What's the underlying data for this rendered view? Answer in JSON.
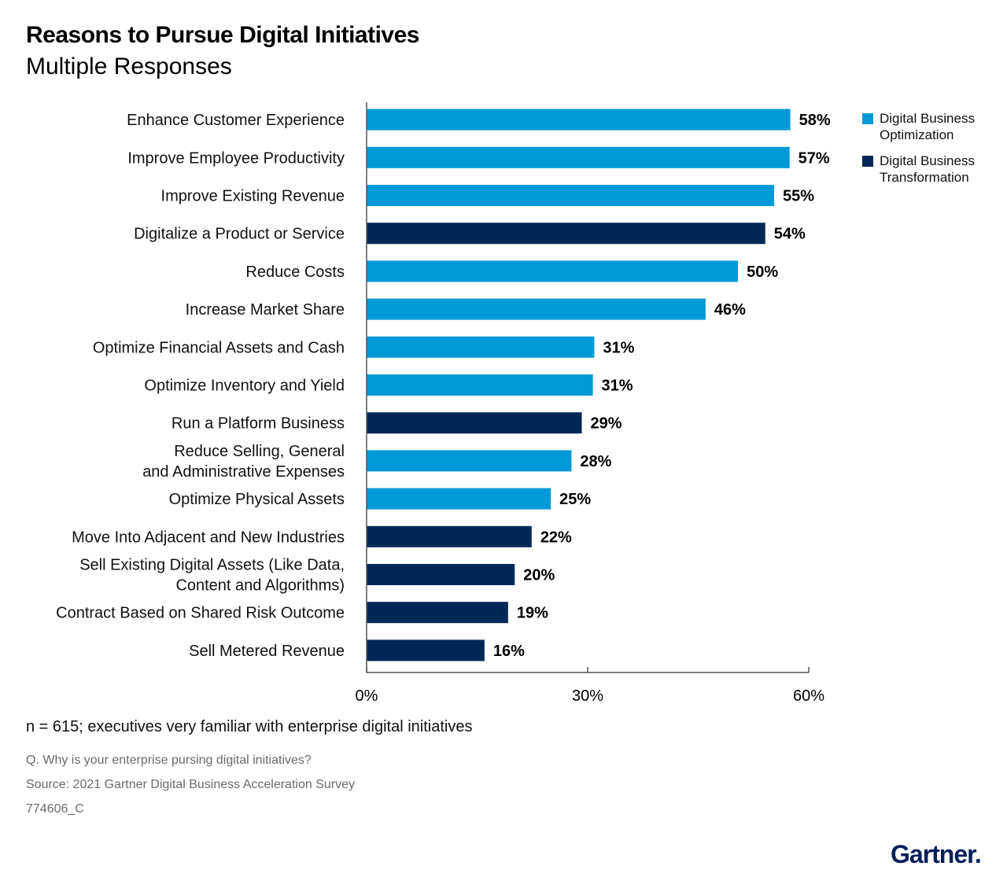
{
  "title": "Reasons to Pursue Digital Initiatives",
  "subtitle": "Multiple Responses",
  "legend": [
    {
      "label_line1": "Digital Business",
      "label_line2": "Optimization",
      "color": "#0099d8"
    },
    {
      "label_line1": "Digital Business",
      "label_line2": "Transformation",
      "color": "#002856"
    }
  ],
  "footer": {
    "note": "n = 615; executives very familiar with enterprise digital initiatives",
    "question": "Q. Why is your enterprise pursing digital initiatives?",
    "source": "Source: 2021 Gartner Digital Business Acceleration Survey",
    "doc_id": "774606_C"
  },
  "logo": "Gartner.",
  "chart_data": {
    "type": "bar",
    "orientation": "horizontal",
    "xlim": [
      0,
      60
    ],
    "xticks": [
      "0%",
      "30%",
      "60%"
    ],
    "xtick_values": [
      0,
      30,
      60
    ],
    "grid": false,
    "legend_position": "top-right",
    "categories": [
      [
        "Enhance Customer Experience"
      ],
      [
        "Improve Employee Productivity"
      ],
      [
        "Improve Existing Revenue"
      ],
      [
        "Digitalize a Product or Service"
      ],
      [
        "Reduce Costs"
      ],
      [
        "Increase Market Share"
      ],
      [
        "Optimize Financial Assets and Cash"
      ],
      [
        "Optimize Inventory and Yield"
      ],
      [
        "Run a Platform Business"
      ],
      [
        "Reduce Selling, General",
        "and Administrative Expenses"
      ],
      [
        "Optimize Physical Assets"
      ],
      [
        "Move Into Adjacent and New Industries"
      ],
      [
        "Sell Existing Digital Assets (Like Data,",
        "Content and Algorithms)"
      ],
      [
        "Contract Based on Shared Risk Outcome"
      ],
      [
        "Sell Metered Revenue"
      ]
    ],
    "values": [
      57.5,
      57.4,
      55.3,
      54.1,
      50.4,
      46.0,
      30.9,
      30.7,
      29.2,
      27.8,
      25.0,
      22.4,
      20.1,
      19.2,
      16.0
    ],
    "value_labels": [
      "58%",
      "57%",
      "55%",
      "54%",
      "50%",
      "46%",
      "31%",
      "31%",
      "29%",
      "28%",
      "25%",
      "22%",
      "20%",
      "19%",
      "16%"
    ],
    "series_type": [
      "Digital Business Optimization",
      "Digital Business Optimization",
      "Digital Business Optimization",
      "Digital Business Transformation",
      "Digital Business Optimization",
      "Digital Business Optimization",
      "Digital Business Optimization",
      "Digital Business Optimization",
      "Digital Business Transformation",
      "Digital Business Optimization",
      "Digital Business Optimization",
      "Digital Business Transformation",
      "Digital Business Transformation",
      "Digital Business Transformation",
      "Digital Business Transformation"
    ],
    "colors": {
      "Digital Business Optimization": "#0099d8",
      "Digital Business Transformation": "#002856"
    }
  }
}
